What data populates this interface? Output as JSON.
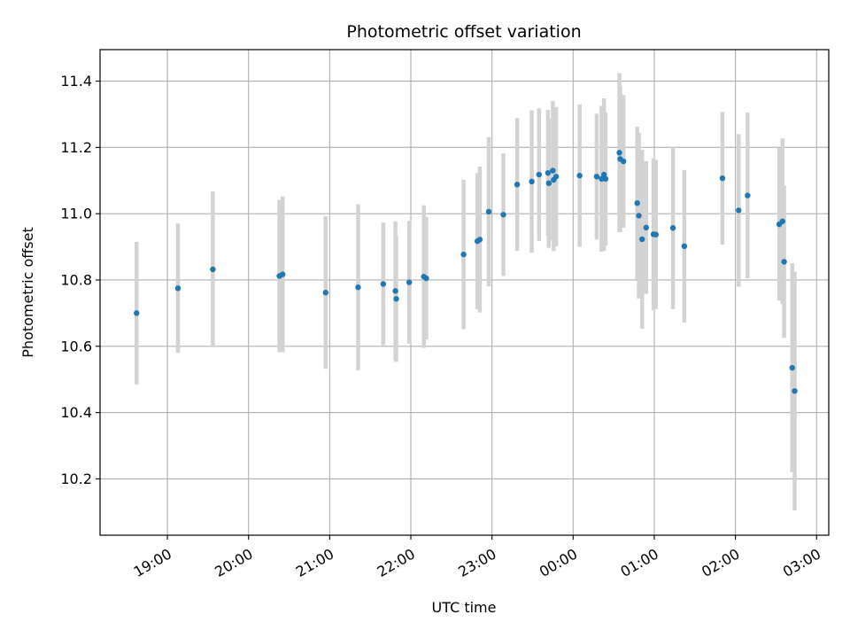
{
  "chart_data": {
    "type": "scatter",
    "title": "Photometric offset variation",
    "xlabel": "UTC time",
    "ylabel": "Photometric offset",
    "grid": true,
    "x_ticks": [
      "19:00",
      "20:00",
      "21:00",
      "22:00",
      "23:00",
      "00:00",
      "01:00",
      "02:00",
      "03:00"
    ],
    "x_tick_hours": [
      19,
      20,
      21,
      22,
      23,
      24,
      25,
      26,
      27
    ],
    "xlim_hours": [
      18.17,
      27.15
    ],
    "y_ticks": [
      "10.2",
      "10.4",
      "10.6",
      "10.8",
      "11.0",
      "11.2",
      "11.4"
    ],
    "ylim": [
      10.03,
      11.495
    ],
    "colors": {
      "point": "#1f77b4",
      "errorbar": "#d3d3d3",
      "grid": "#b0b0b0",
      "axis": "#000000"
    },
    "series": [
      {
        "x_hours": [
          18.62,
          19.13,
          19.56,
          20.38,
          20.42,
          20.95,
          21.35,
          21.66,
          21.81,
          21.82,
          21.98,
          22.16,
          22.19,
          22.65,
          22.82,
          22.85,
          22.96,
          23.14,
          23.31,
          23.49,
          23.58,
          23.69,
          23.7,
          23.75,
          23.76,
          23.79,
          24.08,
          24.29,
          24.35,
          24.38,
          24.4,
          24.57,
          24.58,
          24.62,
          24.79,
          24.81,
          24.85,
          24.9,
          24.99,
          25.02,
          25.23,
          25.37,
          25.84,
          26.04,
          26.15,
          26.54,
          26.58,
          26.6,
          26.7,
          26.73
        ],
        "y": [
          10.7,
          10.775,
          10.832,
          10.812,
          10.817,
          10.762,
          10.778,
          10.788,
          10.767,
          10.743,
          10.793,
          10.81,
          10.805,
          10.877,
          10.917,
          10.922,
          11.006,
          10.997,
          11.088,
          11.097,
          11.118,
          11.123,
          11.092,
          11.13,
          11.102,
          11.112,
          11.115,
          11.112,
          11.105,
          11.118,
          11.105,
          11.184,
          11.165,
          11.158,
          11.032,
          10.994,
          10.923,
          10.958,
          10.938,
          10.937,
          10.957,
          10.902,
          11.107,
          11.01,
          11.055,
          10.968,
          10.977,
          10.855,
          10.535,
          10.465
        ],
        "err": [
          0.215,
          0.195,
          0.235,
          0.23,
          0.235,
          0.23,
          0.25,
          0.185,
          0.21,
          0.19,
          0.185,
          0.215,
          0.185,
          0.225,
          0.205,
          0.22,
          0.225,
          0.185,
          0.2,
          0.215,
          0.2,
          0.19,
          0.195,
          0.21,
          0.215,
          0.21,
          0.215,
          0.19,
          0.22,
          0.23,
          0.2,
          0.24,
          0.22,
          0.2,
          0.23,
          0.25,
          0.27,
          0.2,
          0.23,
          0.225,
          0.245,
          0.23,
          0.2,
          0.23,
          0.25,
          0.23,
          0.25,
          0.23,
          0.315,
          0.36
        ]
      }
    ]
  }
}
